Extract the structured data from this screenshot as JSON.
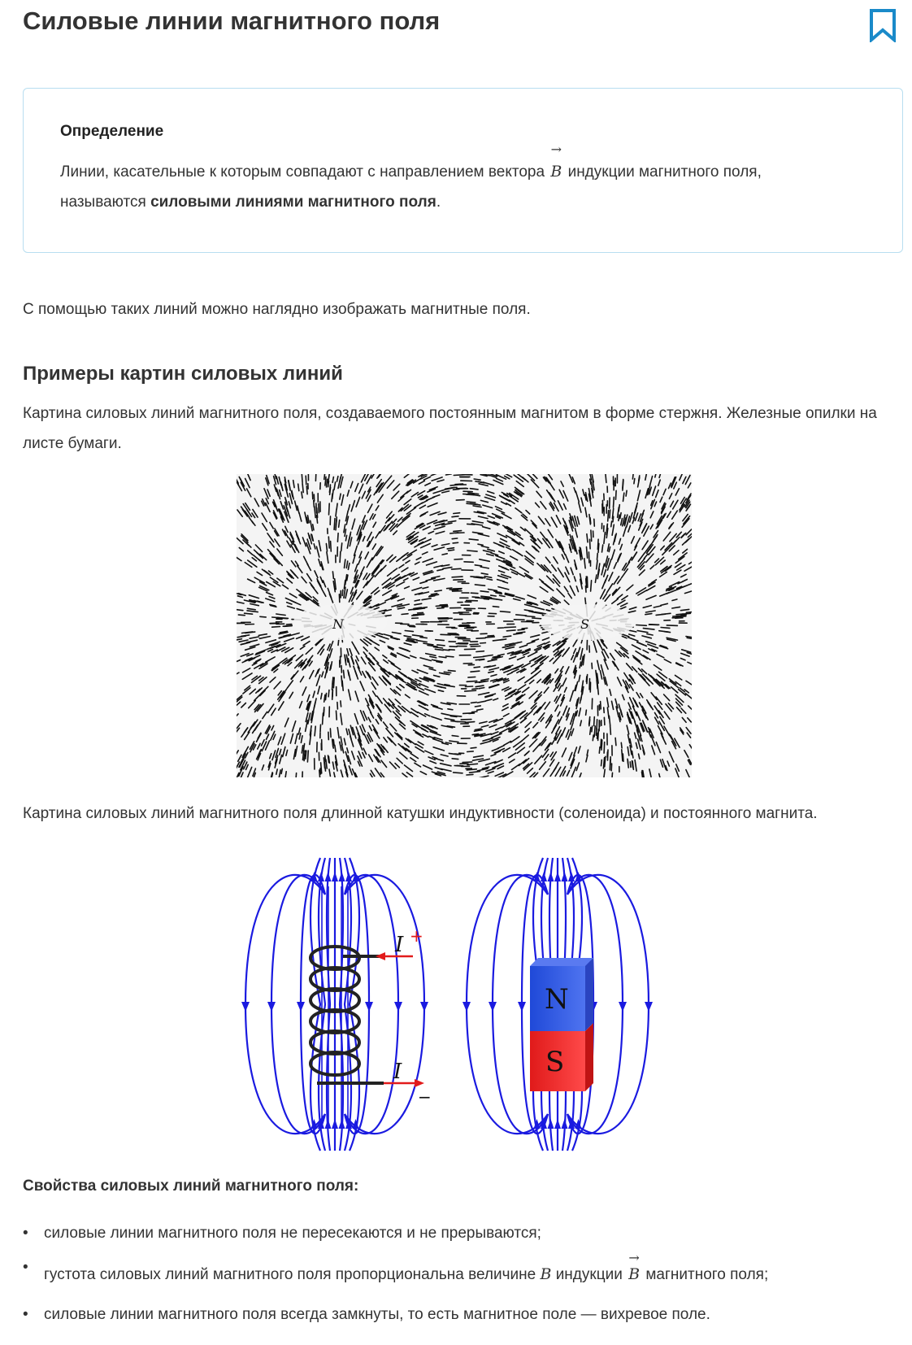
{
  "page": {
    "title": "Силовые линии магнитного поля"
  },
  "definition": {
    "title": "Определение",
    "text_before": "Линии, касательные к которым совпадают с направлением вектора",
    "vector_symbol": "B",
    "vector_arrow": "→",
    "text_after": "индукции магнитного поля,",
    "text_line2_before": "называются",
    "bold_term": "силовыми линиями магнитного поля",
    "text_end": "."
  },
  "intro": "С помощью таких линий можно наглядно изображать магнитные поля.",
  "examples": {
    "heading": "Примеры картин силовых линий",
    "caption1": "Картина силовых линий магнитного поля, создаваемого постоянным магнитом в форме стержня. Железные опилки на листе бумаги.",
    "figure1": {
      "pole_n": "N",
      "pole_s": "S"
    },
    "caption2": "Картина силовых линий магнитного поля длинной катушки индуктивности (соленоида) и постоянного магнита.",
    "figure2": {
      "current_label": "I",
      "plus_sign": "+",
      "minus_sign": "−",
      "magnet_n": "N",
      "magnet_s": "S",
      "line_color": "#1a1ae0",
      "n_color": "#2b4fd8",
      "s_color": "#e21b1b"
    }
  },
  "properties": {
    "title": "Свойства силовых линий магнитного поля:",
    "bullet": "•",
    "item1": "силовые линии магнитного поля не пересекаются и не прерываются;",
    "item2_before": "густота силовых линий магнитного поля пропорциональна величине",
    "item2_sym": "B",
    "item2_mid": "индукции",
    "item2_vec": "B",
    "item2_arrow": "→",
    "item2_after": "магнитного поля;",
    "item3": "силовые линии магнитного поля всегда замкнуты, то есть магнитное поле — вихревое поле."
  }
}
